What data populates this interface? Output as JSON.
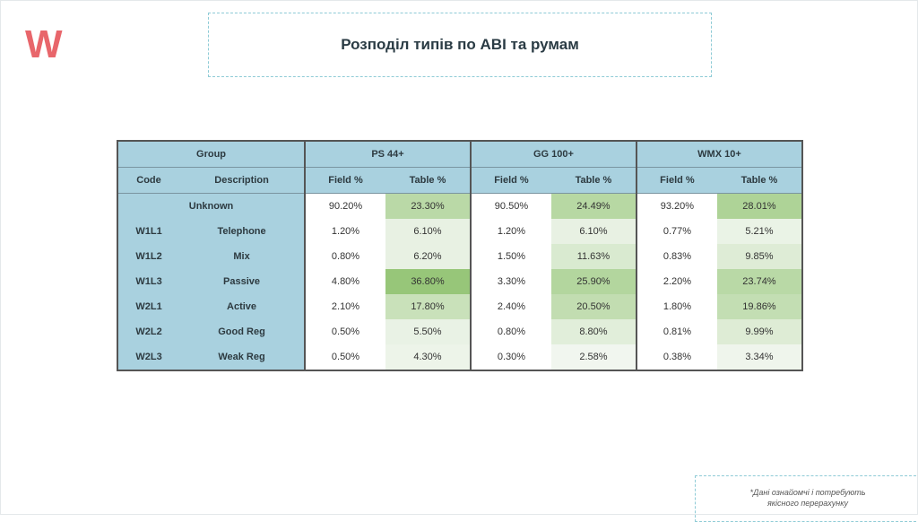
{
  "logo": "W",
  "title": "Розподіл типів по АВІ та румам",
  "table": {
    "group_header": "Group",
    "code_header": "Code",
    "desc_header": "Description",
    "field_header": "Field %",
    "table_header": "Table %",
    "rooms": [
      "PS 44+",
      "GG 100+",
      "WMX 10+"
    ],
    "rows": [
      {
        "code": "Unknown",
        "desc": "",
        "vals": [
          "90.20%",
          "23.30%",
          "90.50%",
          "24.49%",
          "93.20%",
          "28.01%"
        ]
      },
      {
        "code": "W1L1",
        "desc": "Telephone",
        "vals": [
          "1.20%",
          "6.10%",
          "1.20%",
          "6.10%",
          "0.77%",
          "5.21%"
        ]
      },
      {
        "code": "W1L2",
        "desc": "Mix",
        "vals": [
          "0.80%",
          "6.20%",
          "1.50%",
          "11.63%",
          "0.83%",
          "9.85%"
        ]
      },
      {
        "code": "W1L3",
        "desc": "Passive",
        "vals": [
          "4.80%",
          "36.80%",
          "3.30%",
          "25.90%",
          "2.20%",
          "23.74%"
        ]
      },
      {
        "code": "W2L1",
        "desc": "Active",
        "vals": [
          "2.10%",
          "17.80%",
          "2.40%",
          "20.50%",
          "1.80%",
          "19.86%"
        ]
      },
      {
        "code": "W2L2",
        "desc": "Good Reg",
        "vals": [
          "0.50%",
          "5.50%",
          "0.80%",
          "8.80%",
          "0.81%",
          "9.99%"
        ]
      },
      {
        "code": "W2L3",
        "desc": "Weak Reg",
        "vals": [
          "0.50%",
          "4.30%",
          "0.30%",
          "2.58%",
          "0.38%",
          "3.34%"
        ]
      }
    ]
  },
  "note_line1": "*Дані ознайомчі і потребують",
  "note_line2": "якісного перерахунку",
  "colors": {
    "accent": "#e8666b",
    "header": "#a9d1df",
    "green_max": "#9cc97f"
  }
}
